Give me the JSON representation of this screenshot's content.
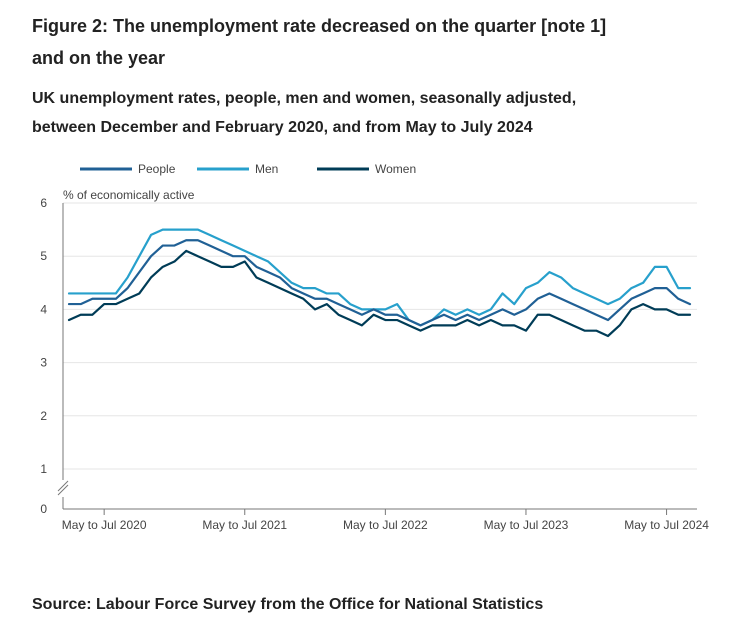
{
  "title": "Figure 2: The unemployment rate decreased on the quarter [note 1] and on the year",
  "subtitle": "UK unemployment rates, people, men and women, seasonally adjusted, between December and February 2020, and from May to July 2024",
  "source": "Source: Labour Force Survey from the Office for National Statistics",
  "colors": {
    "people": "#206095",
    "men": "#27a0cc",
    "women": "#003c57",
    "grid": "#e6e6e6",
    "axis": "#777777"
  },
  "chart_data": {
    "type": "line",
    "title": "UK unemployment rates, people, men and women, seasonally adjusted",
    "ylabel": "% of economically active",
    "xlabel": "",
    "ylim": [
      0,
      6
    ],
    "yticks": [
      0,
      1,
      2,
      3,
      4,
      5,
      6
    ],
    "axis_break": true,
    "legend_position": "top-left",
    "x_start_label": "Dec to Feb 2020",
    "x_end_label": "May to Jul 2024",
    "x_tick_labels": [
      {
        "index": 3,
        "label": "May to Jul 2020"
      },
      {
        "index": 15,
        "label": "May to Jul 2021"
      },
      {
        "index": 27,
        "label": "May to Jul 2022"
      },
      {
        "index": 39,
        "label": "May to Jul 2023"
      },
      {
        "index": 51,
        "label": "May to Jul 2024"
      }
    ],
    "series": [
      {
        "name": "People",
        "key": "people",
        "values": [
          4.1,
          4.1,
          4.2,
          4.2,
          4.2,
          4.4,
          4.7,
          5.0,
          5.2,
          5.2,
          5.3,
          5.3,
          5.2,
          5.1,
          5.0,
          5.0,
          4.8,
          4.7,
          4.6,
          4.4,
          4.3,
          4.2,
          4.2,
          4.1,
          4.0,
          3.9,
          4.0,
          3.9,
          3.9,
          3.8,
          3.7,
          3.8,
          3.9,
          3.8,
          3.9,
          3.8,
          3.9,
          4.0,
          3.9,
          4.0,
          4.2,
          4.3,
          4.2,
          4.1,
          4.0,
          3.9,
          3.8,
          4.0,
          4.2,
          4.3,
          4.4,
          4.4,
          4.2,
          4.1
        ]
      },
      {
        "name": "Men",
        "key": "men",
        "values": [
          4.3,
          4.3,
          4.3,
          4.3,
          4.3,
          4.6,
          5.0,
          5.4,
          5.5,
          5.5,
          5.5,
          5.5,
          5.4,
          5.3,
          5.2,
          5.1,
          5.0,
          4.9,
          4.7,
          4.5,
          4.4,
          4.4,
          4.3,
          4.3,
          4.1,
          4.0,
          4.0,
          4.0,
          4.1,
          3.8,
          3.7,
          3.8,
          4.0,
          3.9,
          4.0,
          3.9,
          4.0,
          4.3,
          4.1,
          4.4,
          4.5,
          4.7,
          4.6,
          4.4,
          4.3,
          4.2,
          4.1,
          4.2,
          4.4,
          4.5,
          4.8,
          4.8,
          4.4,
          4.4
        ]
      },
      {
        "name": "Women",
        "key": "women",
        "values": [
          3.8,
          3.9,
          3.9,
          4.1,
          4.1,
          4.2,
          4.3,
          4.6,
          4.8,
          4.9,
          5.1,
          5.0,
          4.9,
          4.8,
          4.8,
          4.9,
          4.6,
          4.5,
          4.4,
          4.3,
          4.2,
          4.0,
          4.1,
          3.9,
          3.8,
          3.7,
          3.9,
          3.8,
          3.8,
          3.7,
          3.6,
          3.7,
          3.7,
          3.7,
          3.8,
          3.7,
          3.8,
          3.7,
          3.7,
          3.6,
          3.9,
          3.9,
          3.8,
          3.7,
          3.6,
          3.6,
          3.5,
          3.7,
          4.0,
          4.1,
          4.0,
          4.0,
          3.9,
          3.9
        ]
      }
    ]
  }
}
